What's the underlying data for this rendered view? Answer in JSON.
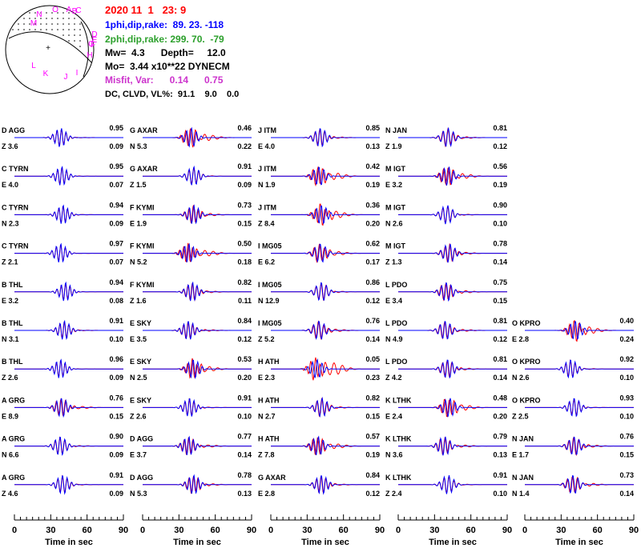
{
  "header": {
    "date_line": "2020 11  1   23: 9",
    "np1": "1phi,dip,rake:  89. 23. -118",
    "np2": "2phi,dip,rake: 299. 70.  -79",
    "mw_depth": "Mw=  4.3      Depth=     12.0",
    "mo": "Mo=  3.44 x10**22 DYNECM",
    "misfit": "Misfit, Var:      0.14      0.75",
    "dc": "DC, CLVD, VL%:  91.1    9.0    0.0"
  },
  "beachball": {
    "station_letters": [
      "O",
      "A",
      "B",
      "C",
      "N",
      "M",
      "D",
      "E",
      "F",
      "G",
      "H",
      "L",
      "K",
      "J",
      "I"
    ]
  },
  "colors": {
    "observed": "#ff0000",
    "synthetic": "#0000ff",
    "date": "#ff0000",
    "np1": "#0000ff",
    "np2": "#2ca02c",
    "misfit": "#cc33cc",
    "stations": "#ff00ff"
  },
  "chart_data": {
    "type": "line",
    "xlabel": "Time  in sec",
    "xlim": [
      0,
      90
    ],
    "xticks": [
      0,
      30,
      60,
      90
    ],
    "columns": [
      [
        {
          "code": "D",
          "station": "AGG",
          "comp": "Z",
          "dist": "3.6",
          "corr": "0.95",
          "scale": "0.09"
        },
        {
          "code": "C",
          "station": "TYRN",
          "comp": "E",
          "dist": "4.0",
          "corr": "0.95",
          "scale": "0.07"
        },
        {
          "code": "C",
          "station": "TYRN",
          "comp": "N",
          "dist": "2.3",
          "corr": "0.94",
          "scale": "0.09"
        },
        {
          "code": "C",
          "station": "TYRN",
          "comp": "Z",
          "dist": "2.1",
          "corr": "0.97",
          "scale": "0.07"
        },
        {
          "code": "B",
          "station": "THL",
          "comp": "E",
          "dist": "3.2",
          "corr": "0.94",
          "scale": "0.08"
        },
        {
          "code": "B",
          "station": "THL",
          "comp": "N",
          "dist": "3.1",
          "corr": "0.91",
          "scale": "0.10"
        },
        {
          "code": "B",
          "station": "THL",
          "comp": "Z",
          "dist": "2.6",
          "corr": "0.96",
          "scale": "0.09"
        },
        {
          "code": "A",
          "station": "GRG",
          "comp": "E",
          "dist": "8.9",
          "corr": "0.76",
          "scale": "0.15"
        },
        {
          "code": "A",
          "station": "GRG",
          "comp": "N",
          "dist": "6.6",
          "corr": "0.90",
          "scale": "0.09"
        },
        {
          "code": "A",
          "station": "GRG",
          "comp": "Z",
          "dist": "4.6",
          "corr": "0.91",
          "scale": "0.09"
        }
      ],
      [
        {
          "code": "G",
          "station": "AXAR",
          "comp": "N",
          "dist": "5.3",
          "corr": "0.46",
          "scale": "0.22"
        },
        {
          "code": "G",
          "station": "AXAR",
          "comp": "Z",
          "dist": "1.5",
          "corr": "0.91",
          "scale": "0.09"
        },
        {
          "code": "F",
          "station": "KYMI",
          "comp": "E",
          "dist": "1.9",
          "corr": "0.73",
          "scale": "0.15"
        },
        {
          "code": "F",
          "station": "KYMI",
          "comp": "N",
          "dist": "5.2",
          "corr": "0.50",
          "scale": "0.18"
        },
        {
          "code": "F",
          "station": "KYMI",
          "comp": "Z",
          "dist": "1.6",
          "corr": "0.82",
          "scale": "0.11"
        },
        {
          "code": "E",
          "station": "SKY",
          "comp": "E",
          "dist": "3.5",
          "corr": "0.84",
          "scale": "0.12"
        },
        {
          "code": "E",
          "station": "SKY",
          "comp": "N",
          "dist": "2.5",
          "corr": "0.53",
          "scale": "0.20"
        },
        {
          "code": "E",
          "station": "SKY",
          "comp": "Z",
          "dist": "2.6",
          "corr": "0.91",
          "scale": "0.10"
        },
        {
          "code": "D",
          "station": "AGG",
          "comp": "E",
          "dist": "3.7",
          "corr": "0.77",
          "scale": "0.14"
        },
        {
          "code": "D",
          "station": "AGG",
          "comp": "N",
          "dist": "5.3",
          "corr": "0.78",
          "scale": "0.13"
        }
      ],
      [
        {
          "code": "J",
          "station": "ITM",
          "comp": "E",
          "dist": "4.0",
          "corr": "0.85",
          "scale": "0.13"
        },
        {
          "code": "J",
          "station": "ITM",
          "comp": "N",
          "dist": "1.9",
          "corr": "0.42",
          "scale": "0.19"
        },
        {
          "code": "J",
          "station": "ITM",
          "comp": "Z",
          "dist": "8.4",
          "corr": "0.36",
          "scale": "0.20"
        },
        {
          "code": "I",
          "station": "MG05",
          "comp": "E",
          "dist": "6.2",
          "corr": "0.62",
          "scale": "0.17"
        },
        {
          "code": "I",
          "station": "MG05",
          "comp": "N",
          "dist": "12.9",
          "corr": "0.86",
          "scale": "0.12"
        },
        {
          "code": "I",
          "station": "MG05",
          "comp": "Z",
          "dist": "5.2",
          "corr": "0.76",
          "scale": "0.14"
        },
        {
          "code": "H",
          "station": "ATH",
          "comp": "E",
          "dist": "2.3",
          "corr": "0.05",
          "scale": "0.23"
        },
        {
          "code": "H",
          "station": "ATH",
          "comp": "N",
          "dist": "2.7",
          "corr": "0.82",
          "scale": "0.15"
        },
        {
          "code": "H",
          "station": "ATH",
          "comp": "Z",
          "dist": "7.8",
          "corr": "0.57",
          "scale": "0.19"
        },
        {
          "code": "G",
          "station": "AXAR",
          "comp": "E",
          "dist": "2.8",
          "corr": "0.84",
          "scale": "0.12"
        }
      ],
      [
        {
          "code": "N",
          "station": "JAN",
          "comp": "Z",
          "dist": "1.9",
          "corr": "0.81",
          "scale": "0.12"
        },
        {
          "code": "M",
          "station": "IGT",
          "comp": "E",
          "dist": "3.2",
          "corr": "0.56",
          "scale": "0.19"
        },
        {
          "code": "M",
          "station": "IGT",
          "comp": "N",
          "dist": "2.6",
          "corr": "0.90",
          "scale": "0.10"
        },
        {
          "code": "M",
          "station": "IGT",
          "comp": "Z",
          "dist": "1.3",
          "corr": "0.78",
          "scale": "0.14"
        },
        {
          "code": "L",
          "station": "PDO",
          "comp": "E",
          "dist": "3.4",
          "corr": "0.75",
          "scale": "0.15"
        },
        {
          "code": "L",
          "station": "PDO",
          "comp": "N",
          "dist": "4.9",
          "corr": "0.81",
          "scale": "0.12"
        },
        {
          "code": "L",
          "station": "PDO",
          "comp": "Z",
          "dist": "4.2",
          "corr": "0.81",
          "scale": "0.14"
        },
        {
          "code": "K",
          "station": "LTHK",
          "comp": "E",
          "dist": "2.4",
          "corr": "0.48",
          "scale": "0.20"
        },
        {
          "code": "K",
          "station": "LTHK",
          "comp": "N",
          "dist": "3.6",
          "corr": "0.79",
          "scale": "0.13"
        },
        {
          "code": "K",
          "station": "LTHK",
          "comp": "Z",
          "dist": "2.4",
          "corr": "0.91",
          "scale": "0.10"
        }
      ],
      [
        null,
        null,
        null,
        null,
        null,
        {
          "code": "O",
          "station": "KPRO",
          "comp": "E",
          "dist": "2.8",
          "corr": "0.40",
          "scale": "0.24"
        },
        {
          "code": "O",
          "station": "KPRO",
          "comp": "N",
          "dist": "2.6",
          "corr": "0.92",
          "scale": "0.10"
        },
        {
          "code": "O",
          "station": "KPRO",
          "comp": "Z",
          "dist": "2.5",
          "corr": "0.93",
          "scale": "0.10"
        },
        {
          "code": "N",
          "station": "JAN",
          "comp": "E",
          "dist": "1.7",
          "corr": "0.76",
          "scale": "0.15"
        },
        {
          "code": "N",
          "station": "JAN",
          "comp": "N",
          "dist": "1.4",
          "corr": "0.73",
          "scale": "0.14"
        }
      ]
    ]
  }
}
